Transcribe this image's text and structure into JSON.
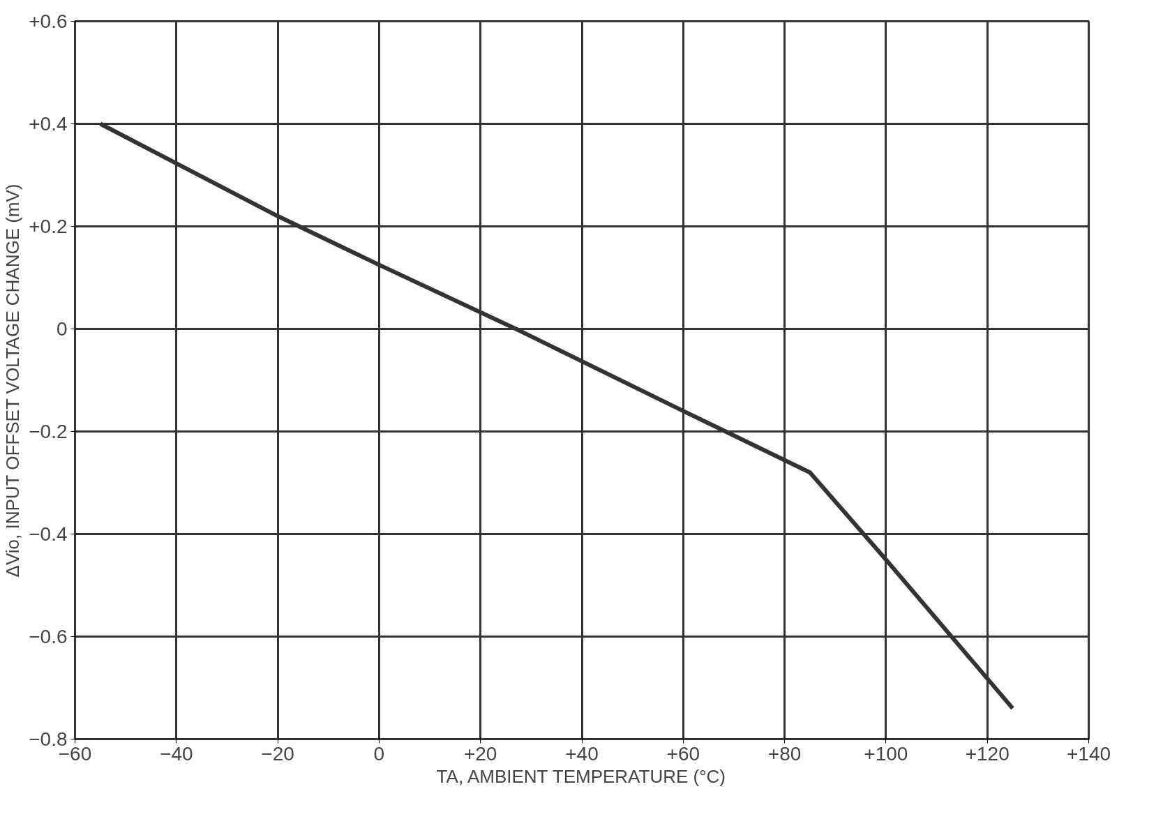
{
  "chart_data": {
    "type": "line",
    "xlabel": "TA, AMBIENT TEMPERATURE (°C)",
    "ylabel": "ΔVio, INPUT OFFSET VOLTAGE CHANGE (mV)",
    "x": [
      -55,
      -20,
      0,
      27,
      60,
      85,
      100,
      125
    ],
    "series": [
      {
        "color": "#333333",
        "values": [
          0.4,
          0.22,
          0.125,
          0,
          -0.16,
          -0.28,
          -0.45,
          -0.74
        ]
      }
    ],
    "xlim": [
      -60,
      140
    ],
    "ylim": [
      -0.8,
      0.6
    ],
    "xticks": [
      {
        "value": -60,
        "label": "−60"
      },
      {
        "value": -40,
        "label": "−40"
      },
      {
        "value": -20,
        "label": "−20"
      },
      0,
      {
        "value": 20,
        "label": "+20"
      },
      {
        "value": 40,
        "label": "+40"
      },
      {
        "value": 60,
        "label": "+60"
      },
      {
        "value": 80,
        "label": "+80"
      },
      {
        "value": 100,
        "label": "+100"
      },
      {
        "value": 120,
        "label": "+120"
      },
      {
        "value": 140,
        "label": "+140"
      }
    ],
    "yticks": [
      {
        "value": -0.8,
        "label": "−0.8"
      },
      {
        "value": -0.6,
        "label": "−0.6"
      },
      {
        "value": -0.4,
        "label": "−0.4"
      },
      {
        "value": -0.2,
        "label": "−0.2"
      },
      0,
      {
        "value": 0.2,
        "label": "+0.2"
      },
      {
        "value": 0.4,
        "label": "+0.4"
      },
      {
        "value": 0.6,
        "label": "+0.6"
      }
    ],
    "grid": true,
    "marker": "none",
    "line_style": "solid"
  }
}
